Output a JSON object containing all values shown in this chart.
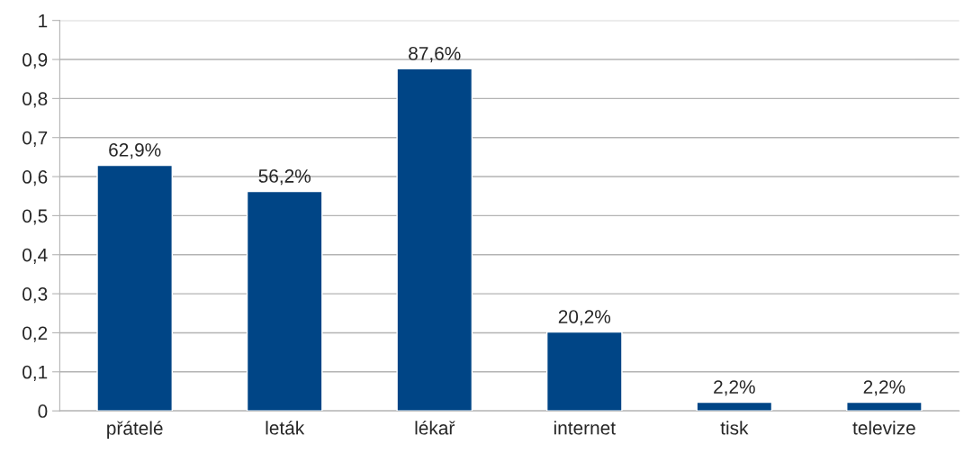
{
  "chart_data": {
    "type": "bar",
    "categories": [
      "přátelé",
      "leták",
      "lékař",
      "internet",
      "tisk",
      "televize"
    ],
    "series": [
      {
        "color": "#004586",
        "values": [
          0.629,
          0.562,
          0.876,
          0.202,
          0.022,
          0.022
        ],
        "value_labels": [
          "62,9%",
          "56,2%",
          "87,6%",
          "20,2%",
          "2,2%",
          "2,2%"
        ]
      }
    ],
    "ylim": [
      0,
      1
    ],
    "yticks": [
      0,
      {
        "value": 0.1,
        "label": "0,1"
      },
      {
        "value": 0.2,
        "label": "0,2"
      },
      {
        "value": 0.3,
        "label": "0,3"
      },
      {
        "value": 0.4,
        "label": "0,4"
      },
      {
        "value": 0.5,
        "label": "0,5"
      },
      {
        "value": 0.6,
        "label": "0,6"
      },
      {
        "value": 0.7,
        "label": "0,7"
      },
      {
        "value": 0.8,
        "label": "0,8"
      },
      {
        "value": 0.9,
        "label": "0,9"
      },
      1
    ],
    "grid": "y",
    "legend": false
  }
}
